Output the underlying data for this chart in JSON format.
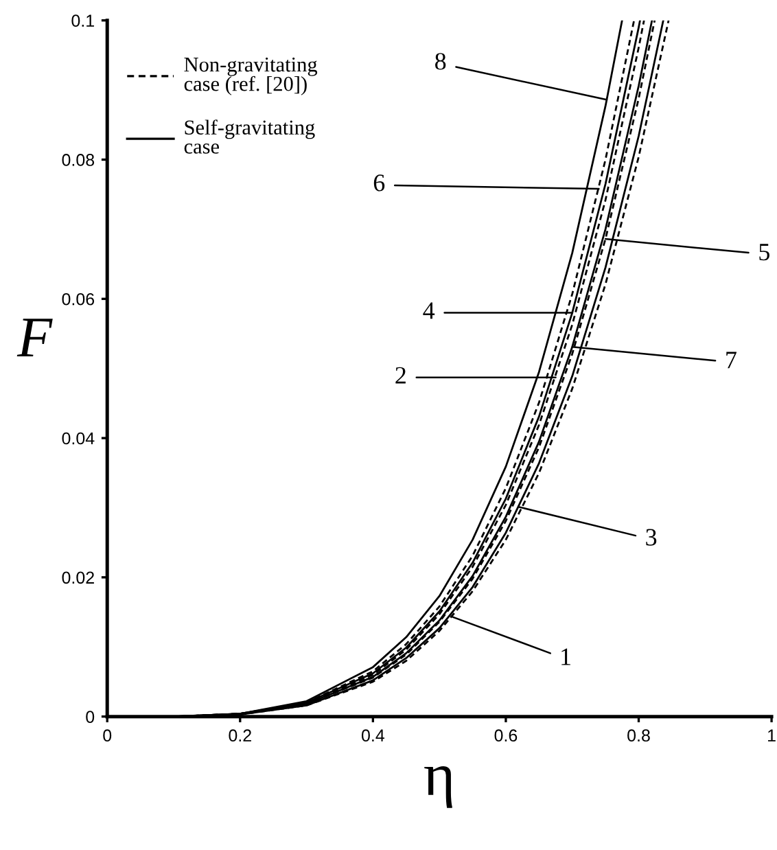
{
  "chart_data": {
    "type": "line",
    "xlabel": "η",
    "ylabel": "F",
    "xlim": [
      0,
      1
    ],
    "ylim": [
      0,
      0.1
    ],
    "xticks": [
      0,
      0.2,
      0.4,
      0.6,
      0.8,
      1
    ],
    "yticks": [
      0,
      0.02,
      0.04,
      0.06,
      0.08,
      0.1
    ],
    "grid": false,
    "marker": "none",
    "series": [
      {
        "color": "#000000",
        "line_style": "dashed",
        "x": [
          0,
          0.1,
          0.2,
          0.3,
          0.4,
          0.45,
          0.5,
          0.55,
          0.6,
          0.65,
          0.7,
          0.75,
          0.8,
          0.845
        ],
        "values": [
          0,
          0,
          0.0003,
          0.0016,
          0.005,
          0.008,
          0.0123,
          0.018,
          0.0254,
          0.035,
          0.0471,
          0.0621,
          0.0804,
          0.1
        ]
      },
      {
        "color": "#000000",
        "line_style": "solid",
        "x": [
          0,
          0.1,
          0.2,
          0.3,
          0.4,
          0.45,
          0.5,
          0.55,
          0.6,
          0.65,
          0.7,
          0.75,
          0.8,
          0.837
        ],
        "values": [
          0,
          0,
          0.0003,
          0.0016,
          0.0052,
          0.0084,
          0.0127,
          0.0186,
          0.0264,
          0.0364,
          0.0489,
          0.0645,
          0.0834,
          0.1
        ]
      },
      {
        "color": "#000000",
        "line_style": "dashed",
        "x": [
          0,
          0.1,
          0.2,
          0.3,
          0.4,
          0.45,
          0.5,
          0.55,
          0.6,
          0.65,
          0.7,
          0.75,
          0.8,
          0.824
        ],
        "values": [
          0,
          0,
          0.0003,
          0.0018,
          0.0056,
          0.0089,
          0.0136,
          0.0198,
          0.0281,
          0.0387,
          0.0521,
          0.0686,
          0.0888,
          0.1
        ]
      },
      {
        "color": "#000000",
        "line_style": "dashed",
        "x": [
          0,
          0.1,
          0.2,
          0.3,
          0.4,
          0.45,
          0.5,
          0.55,
          0.6,
          0.65,
          0.7,
          0.75,
          0.8,
          0.808
        ],
        "values": [
          0,
          0,
          0.0004,
          0.0019,
          0.006,
          0.0096,
          0.0147,
          0.0215,
          0.0304,
          0.0419,
          0.0563,
          0.0742,
          0.0961,
          0.1
        ]
      },
      {
        "color": "#000000",
        "line_style": "solid",
        "x": [
          0,
          0.1,
          0.2,
          0.3,
          0.4,
          0.45,
          0.5,
          0.55,
          0.6,
          0.65,
          0.7,
          0.75,
          0.8,
          0.82
        ],
        "values": [
          0,
          0,
          0.0004,
          0.0018,
          0.0057,
          0.0091,
          0.0138,
          0.0202,
          0.0287,
          0.0395,
          0.0531,
          0.07,
          0.0906,
          0.1
        ]
      },
      {
        "color": "#000000",
        "line_style": "solid",
        "x": [
          0,
          0.1,
          0.2,
          0.3,
          0.4,
          0.45,
          0.5,
          0.55,
          0.6,
          0.65,
          0.7,
          0.75,
          0.8,
          0.802
        ],
        "values": [
          0,
          0,
          0.0004,
          0.002,
          0.0062,
          0.0099,
          0.0151,
          0.0221,
          0.0313,
          0.0431,
          0.058,
          0.0765,
          0.099,
          0.1
        ]
      },
      {
        "color": "#000000",
        "line_style": "dashed",
        "x": [
          0,
          0.1,
          0.2,
          0.3,
          0.4,
          0.45,
          0.5,
          0.55,
          0.6,
          0.65,
          0.7,
          0.75,
          0.793
        ],
        "values": [
          0,
          0,
          0.0004,
          0.002,
          0.0065,
          0.0104,
          0.0158,
          0.0231,
          0.0328,
          0.0451,
          0.0607,
          0.08,
          0.1
        ]
      },
      {
        "color": "#000000",
        "line_style": "solid",
        "x": [
          0,
          0.1,
          0.2,
          0.3,
          0.4,
          0.45,
          0.5,
          0.55,
          0.6,
          0.65,
          0.7,
          0.75,
          0.775
        ],
        "values": [
          0,
          0,
          0.0004,
          0.0022,
          0.0071,
          0.0114,
          0.0173,
          0.0254,
          0.0359,
          0.0495,
          0.0666,
          0.0877,
          0.1
        ]
      }
    ],
    "annotations": [
      "Non-gravitating\ncase (ref. [20])",
      "Self-gravitating\ncase",
      {
        "text": "1",
        "x": 0.52,
        "y": 0.0143
      },
      {
        "text": "2",
        "x": 0.675,
        "y": 0.0487
      },
      {
        "text": "3",
        "x": 0.62,
        "y": 0.0301
      },
      {
        "text": "4",
        "x": 0.7,
        "y": 0.058
      },
      {
        "text": "5",
        "x": 0.75,
        "y": 0.0686
      },
      {
        "text": "6",
        "x": 0.74,
        "y": 0.0758
      },
      {
        "text": "7",
        "x": 0.7,
        "y": 0.0531
      },
      {
        "text": "8",
        "x": 0.752,
        "y": 0.0886
      }
    ]
  }
}
